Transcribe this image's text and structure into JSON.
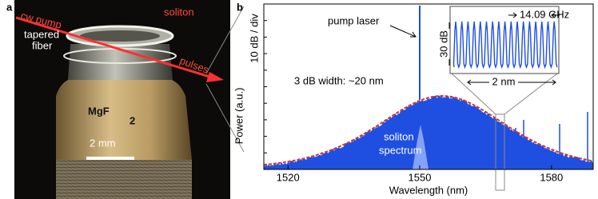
{
  "panel_a": {
    "label": "a",
    "cw_pump": "cw pump",
    "soliton": "soliton",
    "tapered_fiber": [
      "tapered",
      "fiber"
    ],
    "pulses": "pulses",
    "material": "MgF",
    "material_subscript": "2",
    "scale_bar": "2 mm"
  },
  "chart_data": {
    "type": "spectrum",
    "panel_label": "b",
    "ylabel": "Power (a.u.)",
    "ylabel_scale": "10 dB / div",
    "xlabel": "Wavelength (nm)",
    "xlim": [
      1514.5,
      1589.5
    ],
    "xticks": [
      1520,
      1550,
      1580
    ],
    "annotations": {
      "pump": "pump laser",
      "width": "3 dB width: ~20 nm",
      "spectrum": [
        "soliton",
        "spectrum"
      ]
    },
    "inset": {
      "spacing": "14.09 GHz",
      "vertical_scale": "30 dB",
      "span": "2 nm"
    },
    "color": "#1f4fe0",
    "fit_color": "#d9302c"
  }
}
